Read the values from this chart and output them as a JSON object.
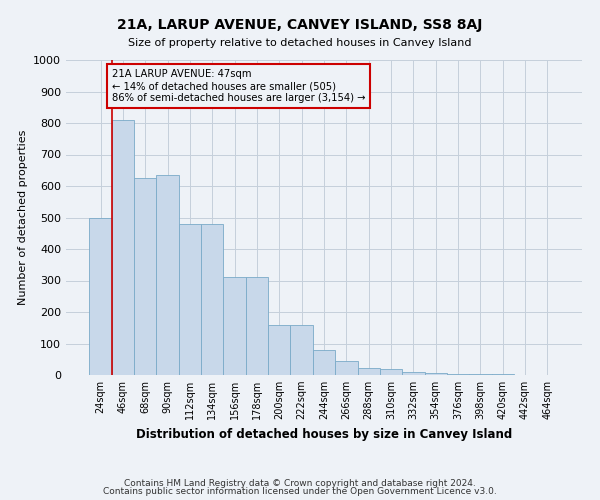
{
  "title": "21A, LARUP AVENUE, CANVEY ISLAND, SS8 8AJ",
  "subtitle": "Size of property relative to detached houses in Canvey Island",
  "xlabel": "Distribution of detached houses by size in Canvey Island",
  "ylabel": "Number of detached properties",
  "footer_line1": "Contains HM Land Registry data © Crown copyright and database right 2024.",
  "footer_line2": "Contains public sector information licensed under the Open Government Licence v3.0.",
  "bin_labels": [
    "24sqm",
    "46sqm",
    "68sqm",
    "90sqm",
    "112sqm",
    "134sqm",
    "156sqm",
    "178sqm",
    "200sqm",
    "222sqm",
    "244sqm",
    "266sqm",
    "288sqm",
    "310sqm",
    "332sqm",
    "354sqm",
    "376sqm",
    "398sqm",
    "420sqm",
    "442sqm",
    "464sqm"
  ],
  "bar_heights": [
    500,
    810,
    625,
    635,
    478,
    478,
    310,
    310,
    160,
    160,
    80,
    45,
    22,
    18,
    10,
    6,
    4,
    3,
    2,
    1,
    1
  ],
  "bar_color": "#c8d8ea",
  "bar_edge_color": "#7aaac8",
  "ylim": [
    0,
    1000
  ],
  "yticks": [
    0,
    100,
    200,
    300,
    400,
    500,
    600,
    700,
    800,
    900,
    1000
  ],
  "property_label": "21A LARUP AVENUE: 47sqm",
  "annotation_line1": "← 14% of detached houses are smaller (505)",
  "annotation_line2": "86% of semi-detached houses are larger (3,154) →",
  "vline_color": "#cc0000",
  "box_color": "#cc0000",
  "background_color": "#eef2f7",
  "grid_color": "#c5cfdb"
}
